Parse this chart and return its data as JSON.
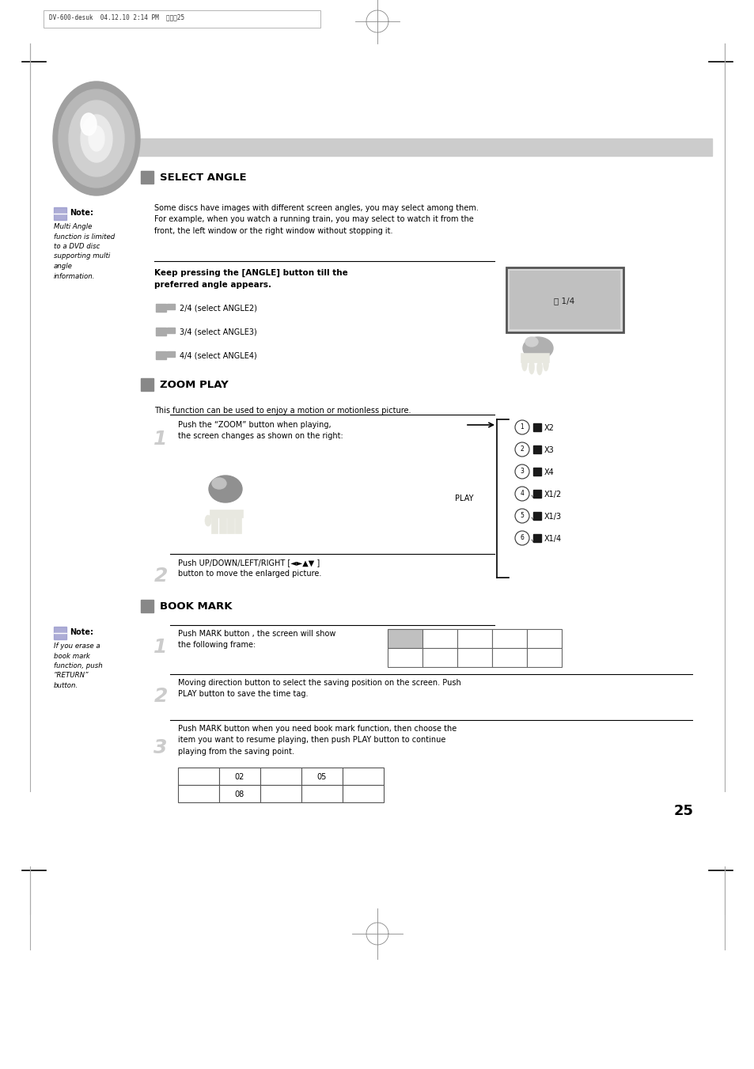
{
  "bg_color": "#ffffff",
  "page_width": 9.54,
  "page_height": 13.51,
  "header_text": "DV-600-desuk  04.12.10 2:14 PM  페이지25",
  "page_number": "25",
  "section1_title": "SELECT ANGLE",
  "section1_body": "Some discs have images with different screen angles, you may select among them.\nFor example, when you watch a running train, you may select to watch it from the\nfront, the left window or the right window without stopping it.",
  "note1_title": "Note:",
  "note1_body": "Multi Angle\nfunction is limited\nto a DVD disc\nsupporting multi\nangle\ninformation.",
  "angle_bold_text": "Keep pressing the [ANGLE] button till the\npreferred angle appears.",
  "angle_items": [
    "2/4 (select ANGLE2)",
    "3/4 (select ANGLE3)",
    "4/4 (select ANGLE4)"
  ],
  "section2_title": "ZOOM PLAY",
  "section2_body": "This function can be used to enjoy a motion or motionless picture.",
  "zoom_step1": "Push the “ZOOM” button when playing,\nthe screen changes as shown on the right:",
  "zoom_step2": "Push UP/DOWN/LEFT/RIGHT [◄►▲▼ ]\nbutton to move the enlarged picture.",
  "zoom_labels": [
    "X2",
    "X3",
    "X4",
    "X1/2",
    "X1/3",
    "X1/4"
  ],
  "zoom_circles": [
    "1",
    "2",
    "3",
    "4",
    "5",
    "6"
  ],
  "zoom_play_label": "PLAY",
  "section3_title": "BOOK MARK",
  "note2_title": "Note:",
  "note2_body": "If you erase a\nbook mark\nfunction, push\n“RETURN”\nbutton.",
  "book_step1": "Push MARK button , the screen will show\nthe following frame:",
  "book_step2": "Moving direction button to select the saving position on the screen. Push\nPLAY button to save the time tag.",
  "book_step3": "Push MARK button when you need book mark function, then choose the\nitem you want to resume playing, then push PLAY button to continue\nplaying from the saving point.",
  "book_table_row1": [
    "",
    "02",
    "",
    "05",
    ""
  ],
  "book_table_row2": [
    "",
    "08",
    "",
    "",
    ""
  ],
  "gray_bar_color": "#cccccc",
  "black_sq_color": "#1a1a1a",
  "note_icon_color": "#9999cc",
  "section_sq_color": "#888888",
  "step_num_color": "#cccccc",
  "line_color": "#000000",
  "border_color": "#888888"
}
